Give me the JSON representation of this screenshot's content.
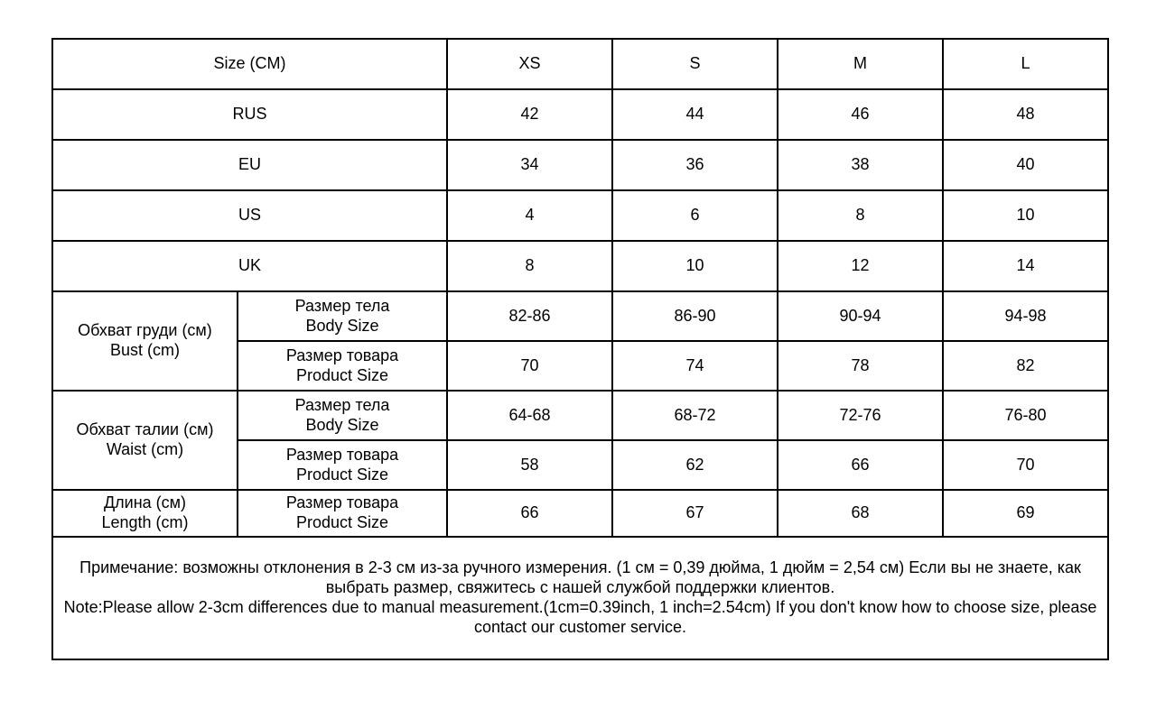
{
  "size_chart": {
    "header_row": {
      "label": "Size (CM)",
      "sizes": [
        "XS",
        "S",
        "M",
        "L"
      ]
    },
    "region_rows": [
      {
        "label": "RUS",
        "values": [
          "42",
          "44",
          "46",
          "48"
        ]
      },
      {
        "label": "EU",
        "values": [
          "34",
          "36",
          "38",
          "40"
        ]
      },
      {
        "label": "US",
        "values": [
          "4",
          "6",
          "8",
          "10"
        ]
      },
      {
        "label": "UK",
        "values": [
          "8",
          "10",
          "12",
          "14"
        ]
      }
    ],
    "bust": {
      "label_ru": "Обхват груди (см)",
      "label_en": "Bust (cm)",
      "body": {
        "label_ru": "Размер тела",
        "label_en": "Body Size",
        "values": [
          "82-86",
          "86-90",
          "90-94",
          "94-98"
        ]
      },
      "product": {
        "label_ru": "Размер товара",
        "label_en": "Product Size",
        "values": [
          "70",
          "74",
          "78",
          "82"
        ]
      }
    },
    "waist": {
      "label_ru": "Обхват талии (см)",
      "label_en": "Waist (cm)",
      "body": {
        "label_ru": "Размер тела",
        "label_en": "Body Size",
        "values": [
          "64-68",
          "68-72",
          "72-76",
          "76-80"
        ]
      },
      "product": {
        "label_ru": "Размер товара",
        "label_en": "Product Size",
        "values": [
          "58",
          "62",
          "66",
          "70"
        ]
      }
    },
    "length": {
      "label_ru": "Длина (см)",
      "label_en": "Length (cm)",
      "product": {
        "label_ru": "Размер товара",
        "label_en": "Product Size",
        "values": [
          "66",
          "67",
          "68",
          "69"
        ]
      }
    },
    "note_ru": "Примечание: возможны отклонения в 2-3 см из-за ручного измерения. (1 см = 0,39 дюйма, 1 дюйм = 2,54 см) Если вы не знаете, как выбрать размер, свяжитесь с нашей службой поддержки клиентов.",
    "note_en": "Note:Please allow 2-3cm differences due to manual measurement.(1cm=0.39inch, 1 inch=2.54cm) If you don't know how to choose size, please contact our customer service."
  }
}
